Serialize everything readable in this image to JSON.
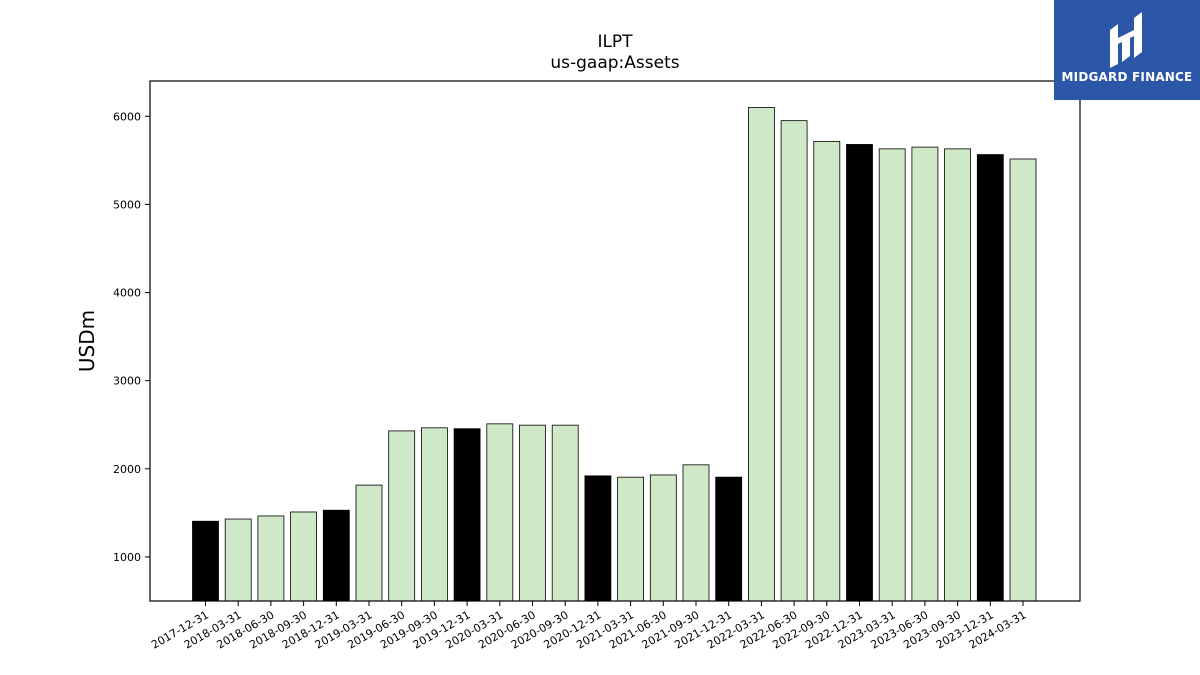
{
  "brand": {
    "name": "MIDGARD FINANCE",
    "icon": "midgard-logo-icon",
    "color": "#2c57a8"
  },
  "chart_data": {
    "type": "bar",
    "title": "ILPT",
    "subtitle": "us-gaap:Assets",
    "xlabel": "",
    "ylabel": "USDm",
    "ylim": [
      500,
      6400
    ],
    "yticks": [
      1000,
      2000,
      3000,
      4000,
      5000,
      6000
    ],
    "grid": false,
    "categories": [
      "2017-12-31",
      "2018-03-31",
      "2018-06-30",
      "2018-09-30",
      "2018-12-31",
      "2019-03-31",
      "2019-06-30",
      "2019-09-30",
      "2019-12-31",
      "2020-03-31",
      "2020-06-30",
      "2020-09-30",
      "2020-12-31",
      "2021-03-31",
      "2021-06-30",
      "2021-09-30",
      "2021-12-31",
      "2022-03-31",
      "2022-06-30",
      "2022-09-30",
      "2022-12-31",
      "2023-03-31",
      "2023-06-30",
      "2023-09-30",
      "2023-12-31",
      "2024-03-31"
    ],
    "values": [
      1405,
      1430,
      1465,
      1510,
      1530,
      1815,
      2430,
      2465,
      2455,
      2510,
      2495,
      2495,
      1920,
      1905,
      1930,
      2045,
      1905,
      6100,
      5950,
      5715,
      5680,
      5630,
      5650,
      5630,
      5565,
      5515
    ],
    "annual_flags": [
      true,
      false,
      false,
      false,
      true,
      false,
      false,
      false,
      true,
      false,
      false,
      false,
      true,
      false,
      false,
      false,
      true,
      false,
      false,
      false,
      true,
      false,
      false,
      false,
      true,
      false
    ],
    "colors": {
      "annual": "#000000",
      "quarterly": "#cfe8c8",
      "edge": "#000000"
    }
  }
}
